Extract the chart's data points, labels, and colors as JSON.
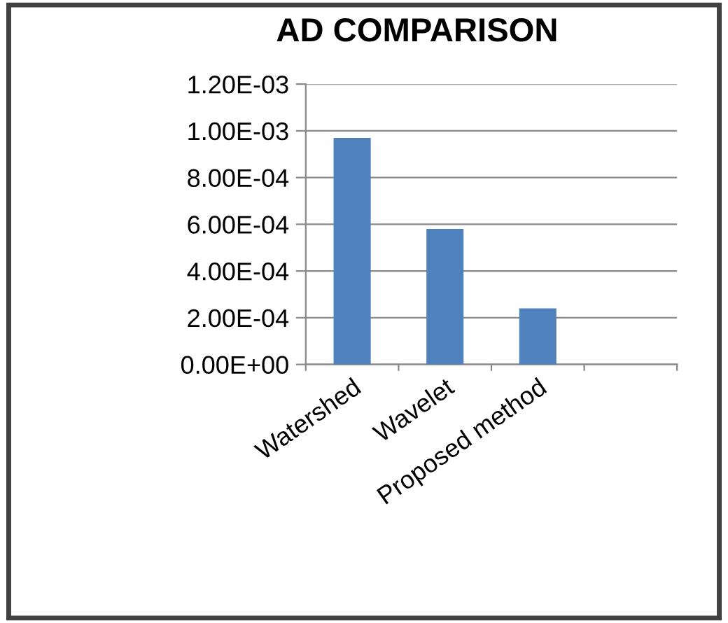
{
  "chart_data": {
    "type": "bar",
    "title": "AD COMPARISON",
    "categories": [
      "Watershed",
      "Wavelet",
      "Proposed method",
      null
    ],
    "values": [
      0.00097,
      0.00058,
      0.00024,
      null
    ],
    "color": "#4f81bd",
    "ylim": [
      0,
      0.0012
    ],
    "yticks": [
      {
        "value": 0,
        "label": "0.00E+00"
      },
      {
        "value": 0.0002,
        "label": "2.00E-04"
      },
      {
        "value": 0.0004,
        "label": "4.00E-04"
      },
      {
        "value": 0.0006,
        "label": "6.00E-04"
      },
      {
        "value": 0.0008,
        "label": "8.00E-04"
      },
      {
        "value": 0.001,
        "label": "1.00E-03"
      },
      {
        "value": 0.0012,
        "label": "1.20E-03"
      }
    ],
    "grid": "y",
    "legend": false
  }
}
